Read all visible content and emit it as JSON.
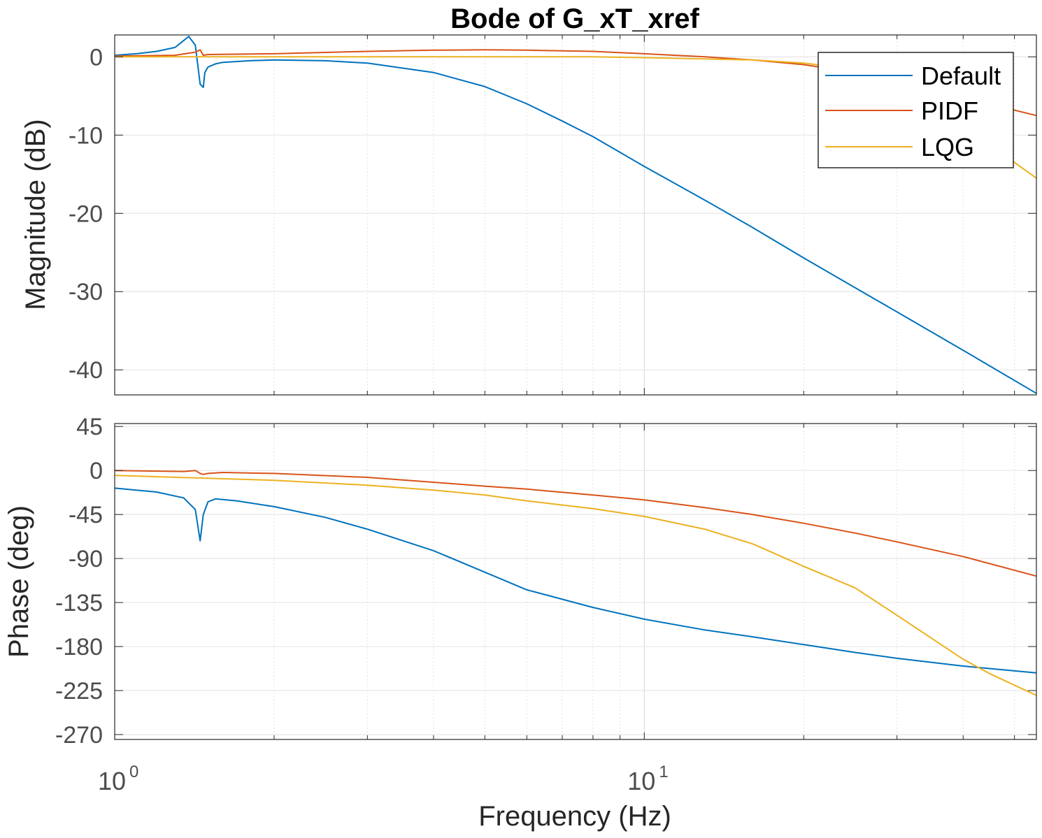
{
  "title": "Bode of G_xT_xref",
  "xlabel": "Frequency  (Hz)",
  "colors": {
    "Default": "#0072BD",
    "PIDF": "#D95319",
    "LQG": "#EDB120"
  },
  "chart_data": [
    {
      "type": "line",
      "panel": "magnitude",
      "title": "Bode of G_xT_xref",
      "ylabel": "Magnitude (dB)",
      "xscale": "log",
      "xlim": [
        1,
        55
      ],
      "ylim": [
        -43.2,
        2.8
      ],
      "yticks": [
        0,
        -10,
        -20,
        -30,
        -40
      ],
      "ytick_labels": [
        "0",
        "-10",
        "-20",
        "-30",
        "-40"
      ],
      "grid": true,
      "legend": {
        "position": "top-right",
        "entries": [
          "Default",
          "PIDF",
          "LQG"
        ]
      },
      "series": [
        {
          "name": "Default",
          "x": [
            1.0,
            1.1,
            1.2,
            1.3,
            1.38,
            1.42,
            1.45,
            1.47,
            1.48,
            1.5,
            1.55,
            1.6,
            1.8,
            2.0,
            2.5,
            3.0,
            4.0,
            5.0,
            6.0,
            7.0,
            8.0,
            10.0,
            13.0,
            16.0,
            20.0,
            25.0,
            30.0,
            40.0,
            55.0
          ],
          "y": [
            0.2,
            0.4,
            0.7,
            1.2,
            2.6,
            1.5,
            -3.5,
            -3.9,
            -2.0,
            -1.3,
            -0.9,
            -0.7,
            -0.5,
            -0.4,
            -0.5,
            -0.8,
            -2.0,
            -3.8,
            -6.0,
            -8.2,
            -10.2,
            -14.0,
            -18.3,
            -21.8,
            -25.7,
            -29.5,
            -32.6,
            -37.5,
            -43.0
          ]
        },
        {
          "name": "PIDF",
          "x": [
            1.0,
            1.3,
            1.42,
            1.45,
            1.47,
            1.5,
            2.0,
            3.0,
            4.0,
            5.0,
            6.0,
            8.0,
            10.0,
            13.0,
            16.0,
            20.0,
            25.0,
            30.0,
            40.0,
            55.0
          ],
          "y": [
            0.1,
            0.2,
            0.6,
            0.9,
            0.2,
            0.3,
            0.4,
            0.7,
            0.85,
            0.9,
            0.85,
            0.7,
            0.4,
            0.0,
            -0.4,
            -1.0,
            -2.0,
            -3.0,
            -5.2,
            -7.5
          ]
        },
        {
          "name": "LQG",
          "x": [
            1.0,
            2.0,
            4.0,
            8.0,
            10.0,
            16.0,
            20.0,
            25.0,
            30.0,
            40.0,
            45.0,
            50.0,
            55.0
          ],
          "y": [
            0.0,
            0.0,
            0.0,
            0.0,
            -0.1,
            -0.4,
            -0.8,
            -1.6,
            -3.0,
            -7.5,
            -10.5,
            -13.5,
            -15.5
          ]
        }
      ]
    },
    {
      "type": "line",
      "panel": "phase",
      "ylabel": "Phase (deg)",
      "xlabel": "Frequency  (Hz)",
      "xscale": "log",
      "xlim": [
        1,
        55
      ],
      "ylim": [
        -275,
        48
      ],
      "yticks": [
        45,
        0,
        -45,
        -90,
        -135,
        -180,
        -225,
        -270
      ],
      "ytick_labels": [
        "45",
        "0",
        "-45",
        "-90",
        "-135",
        "-180",
        "-225",
        "-270"
      ],
      "xticks": [
        1,
        10
      ],
      "xtick_labels": [
        {
          "base": "10",
          "exp": "0"
        },
        {
          "base": "10",
          "exp": "1"
        }
      ],
      "grid": true,
      "series": [
        {
          "name": "Default",
          "x": [
            1.0,
            1.2,
            1.35,
            1.42,
            1.45,
            1.47,
            1.5,
            1.55,
            1.7,
            2.0,
            2.5,
            3.0,
            4.0,
            5.0,
            6.0,
            8.0,
            10.0,
            13.0,
            16.0,
            20.0,
            25.0,
            30.0,
            40.0,
            55.0
          ],
          "y": [
            -18,
            -22,
            -28,
            -40,
            -72,
            -45,
            -32,
            -29,
            -31,
            -37,
            -48,
            -60,
            -82,
            -104,
            -122,
            -140,
            -152,
            -163,
            -170,
            -178,
            -186,
            -192,
            -200,
            -207
          ]
        },
        {
          "name": "PIDF",
          "x": [
            1.0,
            1.35,
            1.42,
            1.45,
            1.47,
            1.5,
            1.6,
            2.0,
            3.0,
            4.0,
            5.0,
            6.0,
            8.0,
            10.0,
            13.0,
            16.0,
            20.0,
            25.0,
            30.0,
            40.0,
            55.0
          ],
          "y": [
            0,
            -1,
            0,
            -3,
            -4,
            -3,
            -2,
            -3,
            -7,
            -12,
            -16,
            -19,
            -25,
            -30,
            -38,
            -45,
            -54,
            -64,
            -73,
            -88,
            -108
          ]
        },
        {
          "name": "LQG",
          "x": [
            1.0,
            2.0,
            3.0,
            4.0,
            5.0,
            6.0,
            8.0,
            10.0,
            13.0,
            16.0,
            20.0,
            25.0,
            30.0,
            40.0,
            45.0,
            55.0
          ],
          "y": [
            -5,
            -10,
            -15,
            -20,
            -25,
            -31,
            -39,
            -47,
            -60,
            -75,
            -98,
            -120,
            -148,
            -193,
            -208,
            -230
          ]
        }
      ]
    }
  ]
}
